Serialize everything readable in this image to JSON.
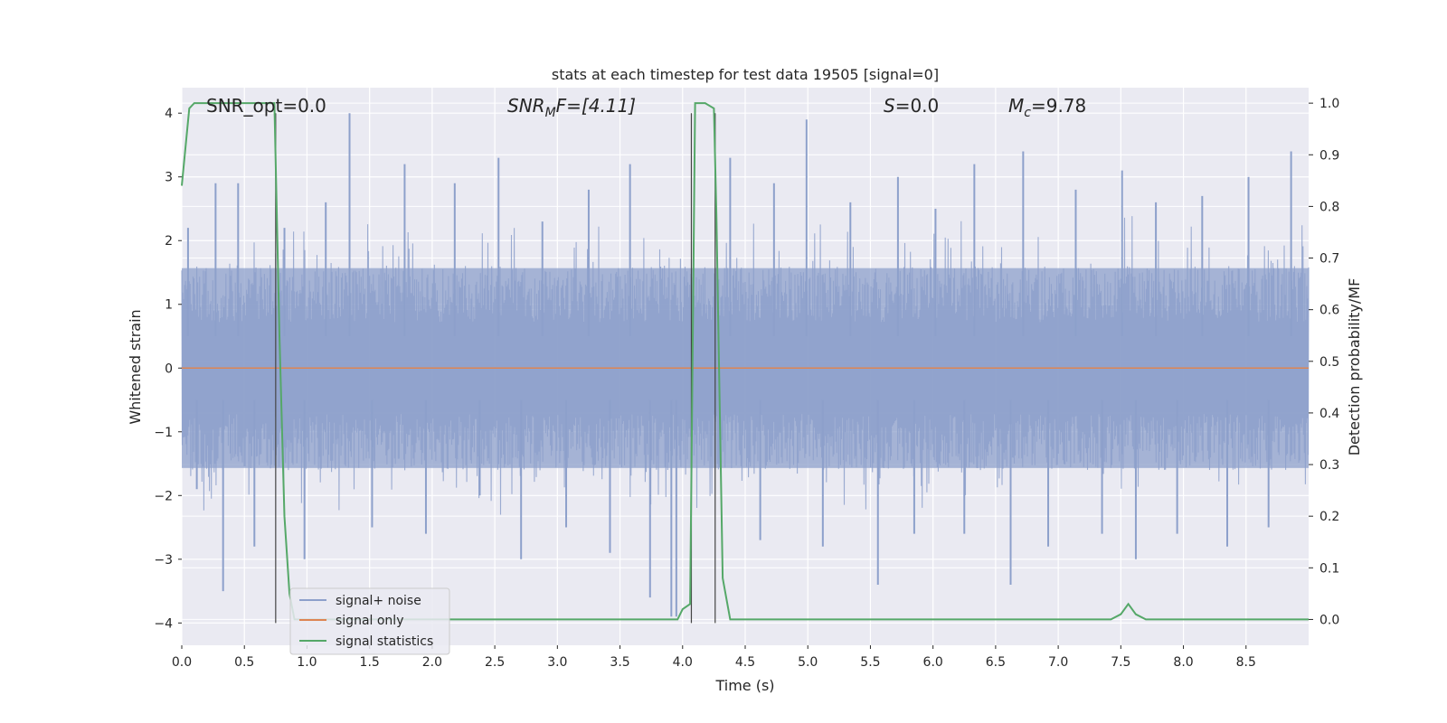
{
  "chart_data": {
    "type": "line",
    "title": "stats at each timestep for test data 19505 [signal=0]",
    "xlabel": "Time (s)",
    "ylabel": "Whitened strain",
    "y2label": "Detection probability/MF",
    "xlim": [
      0.0,
      9.0
    ],
    "ylim": [
      -4.35,
      4.4
    ],
    "y2lim": [
      -0.05,
      1.03
    ],
    "x_ticks": [
      0.0,
      0.5,
      1.0,
      1.5,
      2.0,
      2.5,
      3.0,
      3.5,
      4.0,
      4.5,
      5.0,
      5.5,
      6.0,
      6.5,
      7.0,
      7.5,
      8.0,
      8.5
    ],
    "x_tick_labels": [
      "0.0",
      "0.5",
      "1.0",
      "1.5",
      "2.0",
      "2.5",
      "3.0",
      "3.5",
      "4.0",
      "4.5",
      "5.0",
      "5.5",
      "6.0",
      "6.5",
      "7.0",
      "7.5",
      "8.0",
      "8.5"
    ],
    "y_ticks": [
      -4,
      -3,
      -2,
      -1,
      0,
      1,
      2,
      3,
      4
    ],
    "y_tick_labels": [
      "−4",
      "−3",
      "−2",
      "−1",
      "0",
      "1",
      "2",
      "3",
      "4"
    ],
    "y2_ticks": [
      0.0,
      0.1,
      0.2,
      0.3,
      0.4,
      0.5,
      0.6,
      0.7,
      0.8,
      0.9,
      1.0
    ],
    "y2_tick_labels": [
      "0.0",
      "0.1",
      "0.2",
      "0.3",
      "0.4",
      "0.5",
      "0.6",
      "0.7",
      "0.8",
      "0.9",
      "1.0"
    ],
    "grid": true,
    "legend_position": "bottom-left",
    "annotations": [
      {
        "id": "snr_opt",
        "text": "SNR_opt=0.0"
      },
      {
        "id": "snr_mf",
        "text": "SNR_MF=[4.11]"
      },
      {
        "id": "s",
        "text": "S=0.0"
      },
      {
        "id": "mc",
        "text": "M_c=9.78"
      }
    ],
    "vertical_markers_x": [
      0.75,
      4.07,
      4.26
    ],
    "series": [
      {
        "name": "signal+ noise",
        "axis": "left",
        "color": "#8da0cb",
        "kind": "noise",
        "envelope_abs": 1.6,
        "peak_x": [
          0.05,
          0.12,
          0.27,
          0.33,
          0.45,
          0.58,
          0.82,
          0.98,
          1.15,
          1.34,
          1.52,
          1.78,
          1.95,
          2.18,
          2.38,
          2.53,
          2.71,
          2.88,
          3.07,
          3.25,
          3.42,
          3.58,
          3.74,
          3.91,
          3.95,
          4.38,
          4.62,
          4.73,
          4.99,
          5.12,
          5.34,
          5.56,
          5.72,
          5.85,
          6.02,
          6.25,
          6.33,
          6.62,
          6.72,
          6.92,
          7.14,
          7.35,
          7.51,
          7.62,
          7.78,
          7.95,
          8.15,
          8.35,
          8.52,
          8.68,
          8.86
        ],
        "peak_y": [
          2.2,
          -1.9,
          2.9,
          -3.5,
          2.9,
          -2.8,
          2.2,
          -3.0,
          2.6,
          4.0,
          -2.5,
          3.2,
          -2.6,
          2.9,
          -2.0,
          3.3,
          -3.0,
          2.3,
          -2.5,
          2.8,
          -2.9,
          3.2,
          -3.6,
          -3.9,
          -3.9,
          3.3,
          -2.7,
          2.9,
          3.9,
          -2.8,
          2.6,
          -3.4,
          3.0,
          -2.6,
          2.5,
          -2.6,
          3.2,
          -3.4,
          3.4,
          -2.8,
          2.8,
          -2.6,
          3.1,
          -3.0,
          2.6,
          -2.6,
          2.7,
          -2.8,
          3.0,
          -2.5,
          3.4
        ]
      },
      {
        "name": "signal only",
        "axis": "left",
        "color": "#dd8452",
        "x": [
          0.0,
          9.0
        ],
        "y": [
          0.0,
          0.0
        ]
      },
      {
        "name": "signal statistics",
        "axis": "right",
        "color": "#55a868",
        "x": [
          0.0,
          0.06,
          0.1,
          0.2,
          0.4,
          0.6,
          0.72,
          0.74,
          0.78,
          0.82,
          0.86,
          0.9,
          1.2,
          2.0,
          3.0,
          3.96,
          4.0,
          4.06,
          4.1,
          4.12,
          4.18,
          4.25,
          4.27,
          4.32,
          4.38,
          4.5,
          5.5,
          6.5,
          7.0,
          7.42,
          7.5,
          7.56,
          7.62,
          7.7,
          8.0,
          9.0
        ],
        "y": [
          0.84,
          0.99,
          1.0,
          1.0,
          1.0,
          1.0,
          1.0,
          1.0,
          0.55,
          0.2,
          0.05,
          0.0,
          0.0,
          0.0,
          0.0,
          0.0,
          0.02,
          0.03,
          1.0,
          1.0,
          1.0,
          0.99,
          0.78,
          0.08,
          0.0,
          0.0,
          0.0,
          0.0,
          0.0,
          0.0,
          0.01,
          0.03,
          0.01,
          0.0,
          0.0,
          0.0
        ]
      }
    ]
  }
}
